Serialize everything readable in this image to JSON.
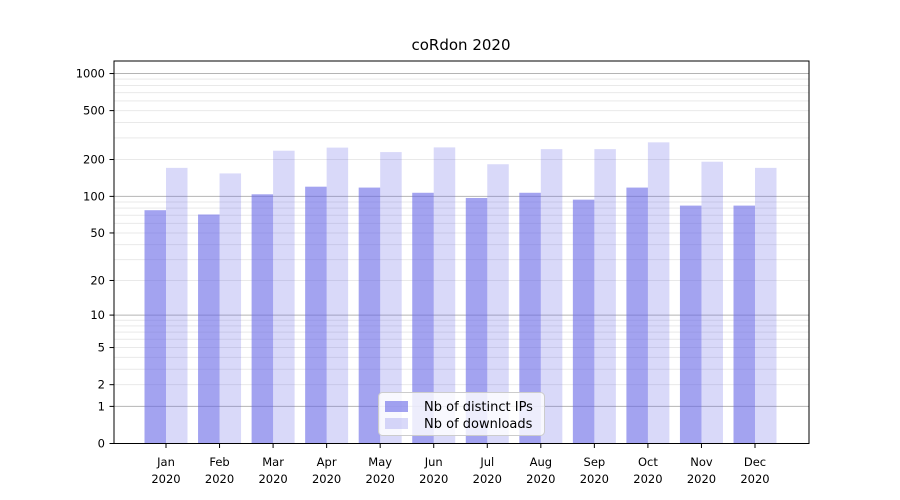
{
  "chart_data": {
    "type": "bar",
    "title": "coRdon 2020",
    "xlabel": "",
    "ylabel": "",
    "yscale": "log1p",
    "ylim": [
      0,
      1260
    ],
    "yticks": [
      1000,
      500,
      200,
      100,
      50,
      20,
      10,
      5,
      2,
      1,
      0
    ],
    "x_ticklabels": [
      [
        "Jan",
        "2020"
      ],
      [
        "Feb",
        "2020"
      ],
      [
        "Mar",
        "2020"
      ],
      [
        "Apr",
        "2020"
      ],
      [
        "May",
        "2020"
      ],
      [
        "Jun",
        "2020"
      ],
      [
        "Jul",
        "2020"
      ],
      [
        "Aug",
        "2020"
      ],
      [
        "Sep",
        "2020"
      ],
      [
        "Oct",
        "2020"
      ],
      [
        "Nov",
        "2020"
      ],
      [
        "Dec",
        "2020"
      ]
    ],
    "series": [
      {
        "name": "Nb of distinct IPs",
        "color": "rgba(102,102,230,0.6)",
        "values": [
          77,
          71,
          104,
          120,
          118,
          107,
          97,
          107,
          94,
          118,
          84,
          84
        ]
      },
      {
        "name": "Nb of downloads",
        "color": "rgba(102,102,230,0.25)",
        "values": [
          171,
          154,
          236,
          250,
          230,
          251,
          183,
          243,
          243,
          276,
          192,
          171
        ]
      }
    ],
    "grid": {
      "major_values": [
        1,
        10,
        100,
        1000
      ],
      "minor_values": [
        2,
        3,
        4,
        5,
        6,
        7,
        8,
        9,
        20,
        30,
        40,
        50,
        60,
        70,
        80,
        90,
        200,
        300,
        400,
        500,
        600,
        700,
        800,
        900
      ],
      "major_color": "#b4b4b4",
      "minor_color": "#e9e9e9"
    },
    "legend_position": "bottom-center"
  },
  "colors": {
    "spine": "#000000",
    "bar_base": "#6666e6",
    "legend_border": "#cccccc",
    "legend_bg": "rgba(255,255,255,0.8)"
  }
}
